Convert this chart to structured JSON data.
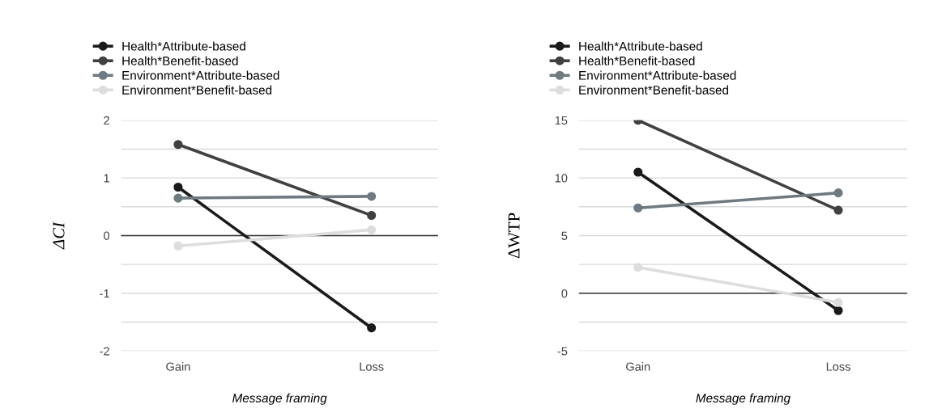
{
  "chart_data": [
    {
      "type": "line",
      "xlabel": "Message framing",
      "ylabel": "ΔCI",
      "categories": [
        "Gain",
        "Loss"
      ],
      "ylim": [
        -2,
        2
      ],
      "yticks": [
        -2,
        {
          "value": -1.5,
          "label": null
        },
        -1,
        {
          "value": -0.5,
          "label": null
        },
        0,
        {
          "value": 0.5,
          "label": null
        },
        1,
        {
          "value": 1.5,
          "label": null
        },
        2
      ],
      "grid": "y",
      "legend": "top left",
      "marker": "circle",
      "line_style": "solid",
      "ref_lines": [
        {
          "axis": "y",
          "value": 0,
          "color": "#333333"
        }
      ],
      "series": [
        {
          "name": "Health*Attribute-based",
          "color": "#1a1a1a",
          "values": [
            0.84,
            -1.6
          ]
        },
        {
          "name": "Health*Benefit-based",
          "color": "#404040",
          "values": [
            1.58,
            0.35
          ]
        },
        {
          "name": "Environment*Attribute-based",
          "color": "#6e7a80",
          "values": [
            0.65,
            0.68
          ]
        },
        {
          "name": "Environment*Benefit-based",
          "color": "#dddddd",
          "values": [
            -0.18,
            0.1
          ]
        }
      ]
    },
    {
      "type": "line",
      "xlabel": "Message framing",
      "ylabel": "ΔWTP",
      "categories": [
        "Gain",
        "Loss"
      ],
      "ylim": [
        -5,
        15
      ],
      "yticks": [
        -5,
        {
          "value": -2.5,
          "label": null
        },
        0,
        {
          "value": 2.5,
          "label": null
        },
        5,
        {
          "value": 7.5,
          "label": null
        },
        10,
        {
          "value": 12.5,
          "label": null
        },
        15
      ],
      "grid": "y",
      "legend": "top left",
      "marker": "circle",
      "line_style": "solid",
      "ref_lines": [
        {
          "axis": "y",
          "value": 0,
          "color": "#333333"
        }
      ],
      "series": [
        {
          "name": "Health*Attribute-based",
          "color": "#1a1a1a",
          "values": [
            10.5,
            -1.5
          ]
        },
        {
          "name": "Health*Benefit-based",
          "color": "#404040",
          "values": [
            15,
            7.2
          ]
        },
        {
          "name": "Environment*Attribute-based",
          "color": "#6e7a80",
          "values": [
            7.4,
            8.7
          ]
        },
        {
          "name": "Environment*Benefit-based",
          "color": "#dddddd",
          "values": [
            2.25,
            -0.8
          ]
        }
      ]
    }
  ]
}
